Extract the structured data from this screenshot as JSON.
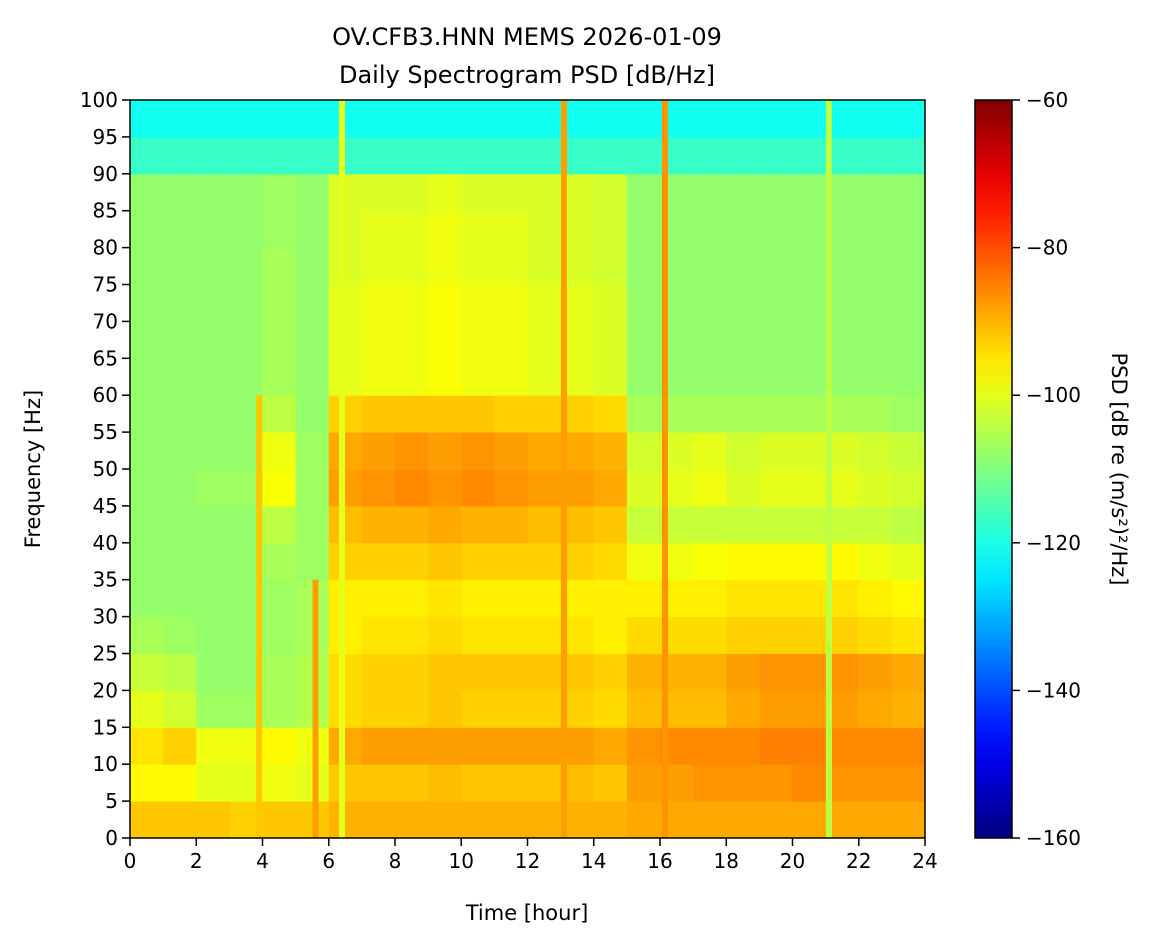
{
  "chart_data": {
    "type": "heatmap",
    "title": "OV.CFB3.HNN MEMS 2026-01-09",
    "subtitle": "Daily Spectrogram PSD [dB/Hz]",
    "xlabel": "Time [hour]",
    "ylabel": "Frequency [Hz]",
    "xlim": [
      0,
      24
    ],
    "ylim": [
      0,
      100
    ],
    "x_ticks": [
      0,
      2,
      4,
      6,
      8,
      10,
      12,
      14,
      16,
      18,
      20,
      22,
      24
    ],
    "y_ticks": [
      0,
      5,
      10,
      15,
      20,
      25,
      30,
      35,
      40,
      45,
      50,
      55,
      60,
      65,
      70,
      75,
      80,
      85,
      90,
      95,
      100
    ],
    "time_bin_hours": 1,
    "freq_bin_hz": 5,
    "colormap": "jet",
    "colorbar": {
      "label": "PSD [dB re (m/s²)²/Hz]",
      "range": [
        -160,
        -60
      ],
      "ticks": [
        -60,
        -80,
        -100,
        -120,
        -140,
        -160
      ],
      "tick_labels": [
        "−60",
        "−80",
        "−100",
        "−120",
        "−140",
        "−160"
      ]
    },
    "psd_db_rows_low_to_high_freq": [
      [
        -92,
        -92,
        -92,
        -93,
        -92,
        -92,
        -90,
        -90,
        -90,
        -90,
        -90,
        -90,
        -90,
        -90,
        -90,
        -89,
        -89,
        -89,
        -89,
        -89,
        -89,
        -89,
        -89,
        -89
      ],
      [
        -97,
        -97,
        -100,
        -100,
        -99,
        -100,
        -92,
        -92,
        -92,
        -91,
        -92,
        -92,
        -92,
        -91,
        -92,
        -88,
        -88,
        -87,
        -87,
        -87,
        -86,
        -87,
        -87,
        -87
      ],
      [
        -95,
        -93,
        -99,
        -99,
        -97,
        -99,
        -89,
        -88,
        -88,
        -88,
        -88,
        -88,
        -88,
        -88,
        -89,
        -87,
        -86,
        -86,
        -86,
        -85,
        -85,
        -86,
        -86,
        -86
      ],
      [
        -100,
        -102,
        -107,
        -107,
        -106,
        -105,
        -94,
        -93,
        -93,
        -92,
        -93,
        -93,
        -93,
        -93,
        -94,
        -91,
        -91,
        -91,
        -89,
        -88,
        -88,
        -88,
        -89,
        -90
      ],
      [
        -103,
        -104,
        -108,
        -108,
        -106,
        -105,
        -94,
        -93,
        -93,
        -92,
        -92,
        -92,
        -92,
        -92,
        -93,
        -90,
        -90,
        -90,
        -88,
        -87,
        -87,
        -87,
        -88,
        -89
      ],
      [
        -106,
        -107,
        -108,
        -108,
        -107,
        -106,
        -96,
        -95,
        -95,
        -94,
        -95,
        -95,
        -95,
        -95,
        -96,
        -94,
        -94,
        -94,
        -93,
        -93,
        -93,
        -93,
        -94,
        -95
      ],
      [
        -108,
        -108,
        -108,
        -108,
        -107,
        -106,
        -96,
        -96,
        -96,
        -95,
        -96,
        -96,
        -96,
        -96,
        -96,
        -96,
        -96,
        -96,
        -95,
        -95,
        -95,
        -95,
        -96,
        -97
      ],
      [
        -108,
        -108,
        -108,
        -108,
        -106,
        -107,
        -93,
        -93,
        -93,
        -92,
        -93,
        -93,
        -93,
        -93,
        -94,
        -99,
        -99,
        -98,
        -97,
        -97,
        -97,
        -97,
        -99,
        -100
      ],
      [
        -108,
        -108,
        -108,
        -108,
        -104,
        -107,
        -91,
        -90,
        -90,
        -89,
        -90,
        -90,
        -91,
        -91,
        -92,
        -103,
        -103,
        -103,
        -103,
        -103,
        -103,
        -103,
        -103,
        -104
      ],
      [
        -108,
        -108,
        -107,
        -107,
        -98,
        -107,
        -88,
        -87,
        -86,
        -87,
        -86,
        -87,
        -88,
        -88,
        -89,
        -101,
        -100,
        -99,
        -101,
        -100,
        -100,
        -100,
        -101,
        -102
      ],
      [
        -108,
        -108,
        -108,
        -108,
        -99,
        -107,
        -89,
        -88,
        -87,
        -88,
        -87,
        -88,
        -89,
        -89,
        -90,
        -102,
        -101,
        -100,
        -102,
        -101,
        -101,
        -101,
        -102,
        -103
      ],
      [
        -108,
        -108,
        -108,
        -108,
        -104,
        -108,
        -93,
        -92,
        -92,
        -92,
        -92,
        -93,
        -93,
        -93,
        -94,
        -106,
        -106,
        -106,
        -106,
        -106,
        -106,
        -106,
        -106,
        -107
      ],
      [
        -108,
        -108,
        -108,
        -108,
        -106,
        -108,
        -100,
        -99,
        -99,
        -98,
        -99,
        -99,
        -100,
        -100,
        -101,
        -108,
        -108,
        -108,
        -108,
        -108,
        -108,
        -108,
        -108,
        -108
      ],
      [
        -108,
        -108,
        -108,
        -108,
        -106,
        -108,
        -100,
        -99,
        -99,
        -98,
        -99,
        -99,
        -100,
        -100,
        -101,
        -108,
        -108,
        -108,
        -108,
        -108,
        -108,
        -108,
        -108,
        -108
      ],
      [
        -108,
        -108,
        -108,
        -108,
        -106,
        -108,
        -100,
        -99,
        -99,
        -98,
        -99,
        -99,
        -100,
        -100,
        -101,
        -108,
        -108,
        -108,
        -108,
        -108,
        -108,
        -108,
        -108,
        -108
      ],
      [
        -108,
        -108,
        -108,
        -108,
        -106,
        -108,
        -101,
        -100,
        -100,
        -99,
        -100,
        -100,
        -101,
        -101,
        -102,
        -108,
        -108,
        -108,
        -108,
        -108,
        -108,
        -108,
        -108,
        -108
      ],
      [
        -108,
        -108,
        -108,
        -108,
        -107,
        -108,
        -101,
        -100,
        -100,
        -99,
        -100,
        -100,
        -101,
        -101,
        -102,
        -108,
        -108,
        -108,
        -108,
        -108,
        -108,
        -108,
        -108,
        -108
      ],
      [
        -108,
        -108,
        -108,
        -108,
        -107,
        -108,
        -101,
        -101,
        -101,
        -100,
        -101,
        -101,
        -101,
        -101,
        -102,
        -108,
        -108,
        -108,
        -108,
        -108,
        -108,
        -108,
        -108,
        -108
      ],
      [
        -117,
        -117,
        -117,
        -117,
        -117,
        -117,
        -117,
        -117,
        -117,
        -117,
        -117,
        -117,
        -117,
        -117,
        -117,
        -117,
        -117,
        -117,
        -117,
        -117,
        -117,
        -117,
        -117,
        -117
      ],
      [
        -121,
        -121,
        -121,
        -121,
        -121,
        -121,
        -121,
        -121,
        -121,
        -121,
        -121,
        -121,
        -121,
        -121,
        -121,
        -121,
        -121,
        -121,
        -121,
        -121,
        -121,
        -121,
        -121,
        -121
      ]
    ],
    "broadband_lines": [
      {
        "time": 3.9,
        "psd": -92,
        "fmax": 60
      },
      {
        "time": 5.6,
        "psd": -88,
        "fmax": 35
      },
      {
        "time": 6.4,
        "psd": -100,
        "fmax": 100
      },
      {
        "time": 13.1,
        "psd": -88,
        "fmax": 100
      },
      {
        "time": 16.15,
        "psd": -87,
        "fmax": 100
      },
      {
        "time": 21.1,
        "psd": -104,
        "fmax": 100
      }
    ]
  }
}
